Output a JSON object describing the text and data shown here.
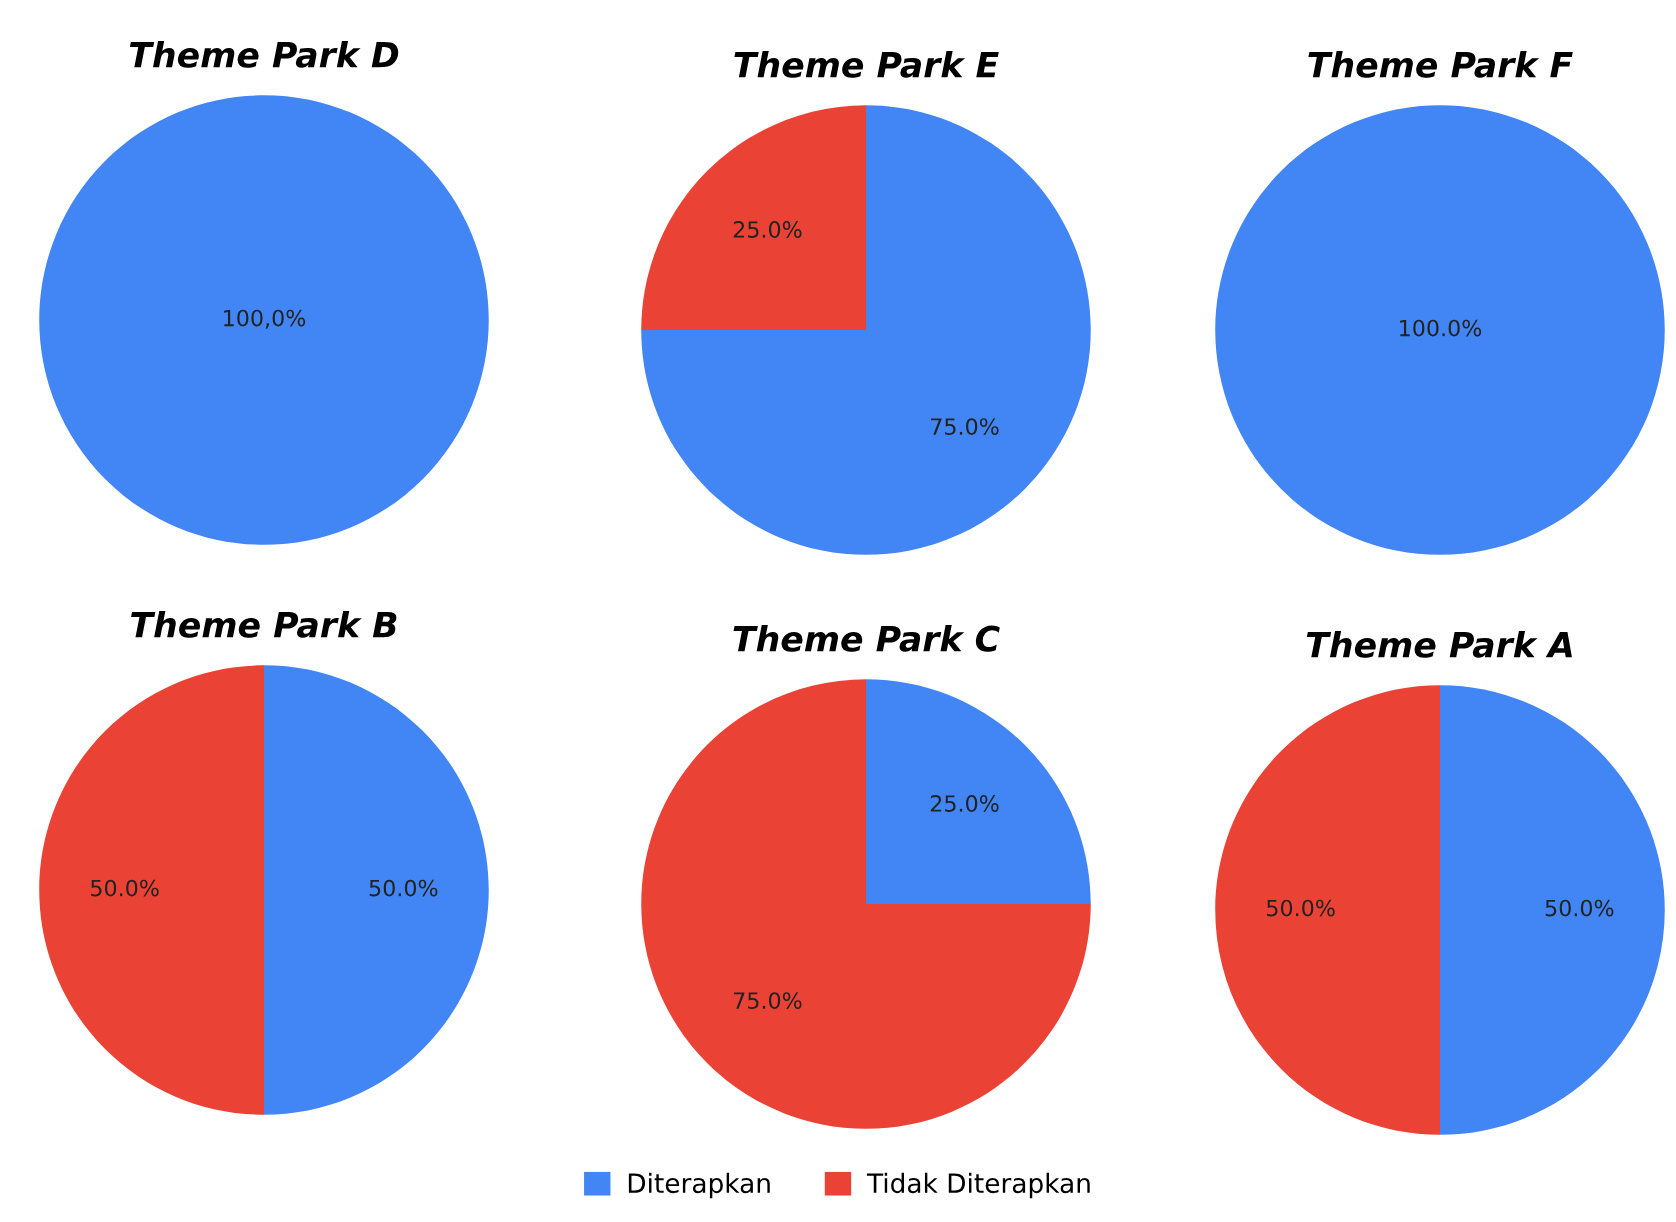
{
  "chart_data": [
    {
      "type": "pie",
      "title": "Theme Park D",
      "categories": [
        null,
        null
      ],
      "values": [
        100,
        0
      ],
      "colors": [
        "#4285f4",
        "#ea4335"
      ],
      "value_labels": [
        "100,0%",
        null
      ]
    },
    {
      "type": "pie",
      "title": "Theme Park E",
      "categories": [
        null,
        null
      ],
      "values": [
        75,
        25
      ],
      "colors": [
        "#4285f4",
        "#ea4335"
      ],
      "value_labels": [
        "75.0%",
        "25.0%"
      ]
    },
    {
      "type": "pie",
      "title": "Theme Park F",
      "categories": [
        null,
        null
      ],
      "values": [
        100,
        0
      ],
      "colors": [
        "#4285f4",
        "#ea4335"
      ],
      "value_labels": [
        "100.0%",
        null
      ]
    },
    {
      "type": "pie",
      "title": "Theme Park B",
      "categories": [
        null,
        null
      ],
      "values": [
        50,
        50
      ],
      "colors": [
        "#4285f4",
        "#ea4335"
      ],
      "value_labels": [
        "50.0%",
        "50.0%"
      ]
    },
    {
      "type": "pie",
      "title": "Theme Park C",
      "categories": [
        null,
        null
      ],
      "values": [
        25,
        75
      ],
      "colors": [
        "#4285f4",
        "#ea4335"
      ],
      "value_labels": [
        "25.0%",
        "75.0%"
      ]
    },
    {
      "type": "pie",
      "title": "Theme Park A",
      "categories": [
        "Diterapkan",
        "Tidak Diterapkan"
      ],
      "values": [
        50,
        50
      ],
      "colors": [
        "#4285f4",
        "#ea4335"
      ],
      "value_labels": [
        "50.0%",
        "50.0%"
      ],
      "legend": "bottom"
    }
  ]
}
